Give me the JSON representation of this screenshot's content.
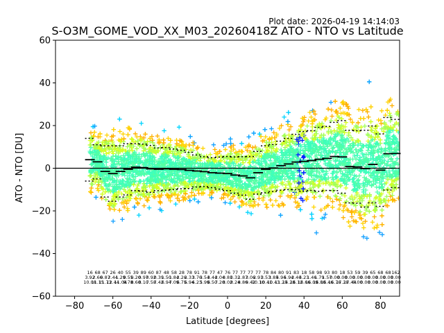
{
  "plot_date": "Plot date: 2026-04-19 14:14:03",
  "chart_data": {
    "type": "scatter",
    "title": "S-O3M_GOME_VOD_XX_M03_20260418Z ATO - NTO vs Latitude",
    "xlabel": "Latitude [degrees]",
    "ylabel": "ATO - NTO [DU]",
    "xlim": [
      -90,
      90
    ],
    "ylim": [
      -60,
      60
    ],
    "xticks": [
      -80,
      -60,
      -40,
      -20,
      0,
      20,
      40,
      60,
      80
    ],
    "xtick_labels": [
      "−80",
      "−60",
      "−40",
      "−20",
      "0",
      "20",
      "40",
      "60",
      "80"
    ],
    "yticks": [
      -60,
      -40,
      -20,
      0,
      20,
      40,
      60
    ],
    "ytick_labels": [
      "−60",
      "−40",
      "−20",
      "0",
      "20",
      "40",
      "60"
    ],
    "zero_line": 0,
    "grid": false,
    "legend": "none",
    "marker": "plus",
    "point_colors": [
      "#54ffa4",
      "#3cffbd",
      "#a0ff57",
      "#d6ff20",
      "#ffd400",
      "#ffb000",
      "#00d4ff",
      "#14a0ff",
      "#0020ff"
    ],
    "mean_color": "#000000",
    "bins": {
      "lat": [
        -72,
        -68,
        -64,
        -60,
        -56,
        -52,
        -48,
        -44,
        -40,
        -36,
        -32,
        -28,
        -24,
        -20,
        -16,
        -12,
        -8,
        -4,
        0,
        4,
        8,
        12,
        16,
        20,
        24,
        28,
        32,
        36,
        40,
        44,
        48,
        52,
        56,
        60,
        64,
        68,
        72,
        76,
        80,
        84,
        88
      ],
      "mean": [
        4.0,
        3.0,
        -1.5,
        -2.5,
        -1.5,
        -0.5,
        0.5,
        0.3,
        -0.3,
        -0.5,
        -0.3,
        -0.5,
        -0.6,
        -1.0,
        -1.3,
        -1.6,
        -2.1,
        -2.3,
        -2.5,
        -3.2,
        -3.6,
        -4.5,
        -2.1,
        -0.5,
        0.1,
        1.2,
        2.0,
        2.9,
        3.2,
        3.6,
        4.2,
        4.6,
        5.5,
        5.3,
        0.8,
        0.6,
        -0.2,
        1.8,
        -0.9,
        6.8,
        6.9
      ],
      "std": [
        10.0,
        8.0,
        12.0,
        13.0,
        12.0,
        12.0,
        11.0,
        11.0,
        11.0,
        10.0,
        10.0,
        9.5,
        9.0,
        8.5,
        7.5,
        7.0,
        7.0,
        7.5,
        8.0,
        8.5,
        9.0,
        10.0,
        10.0,
        11.0,
        11.0,
        11.5,
        12.0,
        13.0,
        14.0,
        14.0,
        15.0,
        15.0,
        16.0,
        17.0,
        17.0,
        17.0,
        18.0,
        18.0,
        17.0,
        17.0,
        16.0
      ],
      "count_labels": [
        "16",
        "68",
        "67",
        "26",
        "40",
        "55",
        "39",
        "89",
        "60",
        "87",
        "48",
        "58",
        "28",
        "78",
        "91",
        "78",
        "77",
        "47",
        "76",
        "77",
        "77",
        "77",
        "77",
        "78",
        "84",
        "80",
        "91",
        "83",
        "18",
        "58",
        "98",
        "93",
        "80",
        "18",
        "53",
        "59",
        "39",
        "65",
        "68",
        "68",
        "162"
      ],
      "stat_row2": [
        "3.92",
        "2.66",
        "0.87",
        "2.44",
        "1.29",
        "0.55",
        "0.20",
        "0.97",
        "0.92",
        "0.39",
        "1.50",
        "1.84",
        "2.26",
        "2.33",
        "3.76",
        "3.54",
        "3.44",
        "2.04",
        "0.81",
        "0.32",
        "1.87",
        "3.06",
        "2.91",
        "3.53",
        "3.85",
        "4.94",
        "5.94",
        "2.40",
        "4.23",
        "1.46",
        "1.79",
        "1.57",
        "0.00",
        "0.00",
        "0.00",
        "0.00",
        "0.00",
        "0.00",
        "0.00",
        "0.00",
        "0.00"
      ],
      "stat_row3": [
        "10.08",
        "11.15",
        "11.73",
        "12.44",
        "11.04",
        "8.78",
        "8.60",
        "8.10",
        "7.58",
        "7.42",
        "6.94",
        "7.09",
        "6.75",
        "6.94",
        "6.23",
        "5.99",
        "6.50",
        "7.20",
        "8.02",
        "8.24",
        "8.86",
        "9.42",
        "10.10",
        "10.41",
        "10.43",
        "11.25",
        "14.28",
        "16.12",
        "16.66",
        "16.09",
        "16.80",
        "16.46",
        "16.76",
        "17.28",
        "17.44",
        "0.00",
        "0.00",
        "0.00",
        "0.00",
        "0.00",
        "0.00"
      ]
    }
  }
}
